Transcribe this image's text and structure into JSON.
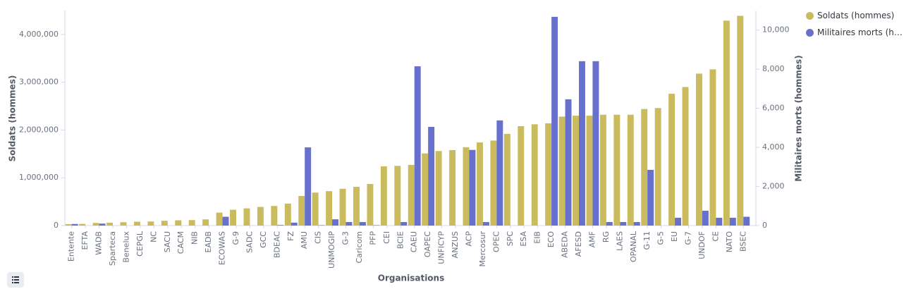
{
  "chart_data": {
    "type": "bar",
    "x_label": "Organisations",
    "y_label": "Soldats (hommes)",
    "y2_label": "Militaires morts (hommes)",
    "categories": [
      "Entente",
      "EFTA",
      "WADB",
      "Sparteca",
      "Benelux",
      "CEPGL",
      "NC",
      "SACU",
      "CACM",
      "NIB",
      "EADB",
      "ECOWAS",
      "G-9",
      "SADC",
      "GCC",
      "BDEAC",
      "FZ",
      "AMU",
      "CIS",
      "UNMOGIP",
      "G-3",
      "Caricom",
      "PFP",
      "CEI",
      "BCIE",
      "CAEU",
      "OAPEC",
      "UNFICYP",
      "ANZUS",
      "ACP",
      "Mercosur",
      "OPEC",
      "SPC",
      "ESA",
      "EIB",
      "ECO",
      "ABEDA",
      "AFESD",
      "AMF",
      "RG",
      "LAES",
      "OPANAL",
      "G-11",
      "G-5",
      "EU",
      "G-7",
      "UNDOF",
      "CE",
      "NATO",
      "BSEC"
    ],
    "series": [
      {
        "name": "Soldats (hommes)",
        "color": "#cbbb5f",
        "values": [
          30000,
          35000,
          55000,
          60000,
          70000,
          80000,
          85000,
          100000,
          110000,
          115000,
          130000,
          270000,
          330000,
          360000,
          390000,
          410000,
          460000,
          620000,
          690000,
          720000,
          770000,
          810000,
          870000,
          1240000,
          1250000,
          1270000,
          1510000,
          1560000,
          1580000,
          1640000,
          1740000,
          1780000,
          1920000,
          2080000,
          2120000,
          2140000,
          2280000,
          2300000,
          2300000,
          2320000,
          2320000,
          2320000,
          2440000,
          2460000,
          2760000,
          2900000,
          3180000,
          3270000,
          4290000,
          4390000
        ]
      },
      {
        "name": "Militaires morts (hommes)",
        "color": "#6770cc",
        "axis": "y2",
        "values": [
          80,
          0,
          100,
          0,
          0,
          0,
          0,
          0,
          0,
          0,
          0,
          450,
          0,
          0,
          0,
          30,
          150,
          4000,
          20,
          320,
          180,
          180,
          20,
          0,
          180,
          8150,
          5050,
          0,
          0,
          3870,
          180,
          5380,
          0,
          0,
          0,
          10680,
          6460,
          8410,
          8410,
          180,
          180,
          180,
          2850,
          0,
          400,
          0,
          760,
          400,
          400,
          450
        ]
      }
    ],
    "ylim": [
      0,
      4500000
    ],
    "yticks": [
      0,
      {
        "value": 1000000,
        "label": "1,000,000"
      },
      {
        "value": 2000000,
        "label": "2,000,000"
      },
      {
        "value": 3000000,
        "label": "3,000,000"
      },
      {
        "value": 4000000,
        "label": "4,000,000"
      }
    ],
    "y2lim": [
      0,
      11000
    ],
    "y2ticks": [
      0,
      {
        "value": 2000,
        "label": "2,000"
      },
      {
        "value": 4000,
        "label": "4,000"
      },
      {
        "value": 6000,
        "label": "6,000"
      },
      {
        "value": 8000,
        "label": "8,000"
      },
      {
        "value": 10000,
        "label": "10,000"
      }
    ],
    "legend": "top-right"
  }
}
